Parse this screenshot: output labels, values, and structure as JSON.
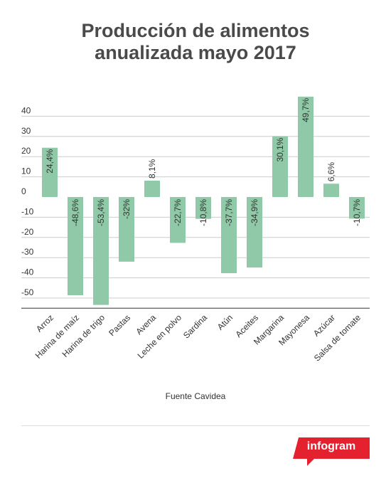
{
  "title_line1": "Producción de alimentos",
  "title_line2": "anualizada mayo 2017",
  "source": "Fuente Cavidea",
  "brand": "infogram",
  "colors": {
    "bar": "#8fc9a7",
    "grid": "#cccccc",
    "axis": "#333333",
    "brand": "#e4222f"
  },
  "chart_data": {
    "type": "bar",
    "title": "Producción de alimentos anualizada mayo 2017",
    "categories": [
      "Arroz",
      "Harina de maíz",
      "Harina de trigo",
      "Pastas",
      "Avena",
      "Leche en polvo",
      "Sardina",
      "Atún",
      "Aceites",
      "Margarina",
      "Mayonesa",
      "Azúcar",
      "Salsa de tomate"
    ],
    "values": [
      24.4,
      -48.6,
      -53.4,
      -32,
      8.1,
      -22.7,
      -10.8,
      -37.7,
      -34.9,
      30.1,
      49.7,
      6.6,
      -10.7
    ],
    "labels": [
      "24,4%",
      "-48,6%",
      "-53,4%",
      "-32%",
      "8,1%",
      "-22,7%",
      "-10,8%",
      "-37,7%",
      "-34,9%",
      "30,1%",
      "49,7%",
      "6,6%",
      "-10,7%"
    ],
    "yticks": [
      "40",
      "30",
      "20",
      "10",
      "0",
      "-10",
      "-20",
      "-30",
      "-40",
      "-50"
    ],
    "ytick_values": [
      40,
      30,
      20,
      10,
      0,
      -10,
      -20,
      -30,
      -40,
      -50
    ],
    "ylim": [
      -55,
      50
    ],
    "grid": true,
    "legend": "none"
  }
}
